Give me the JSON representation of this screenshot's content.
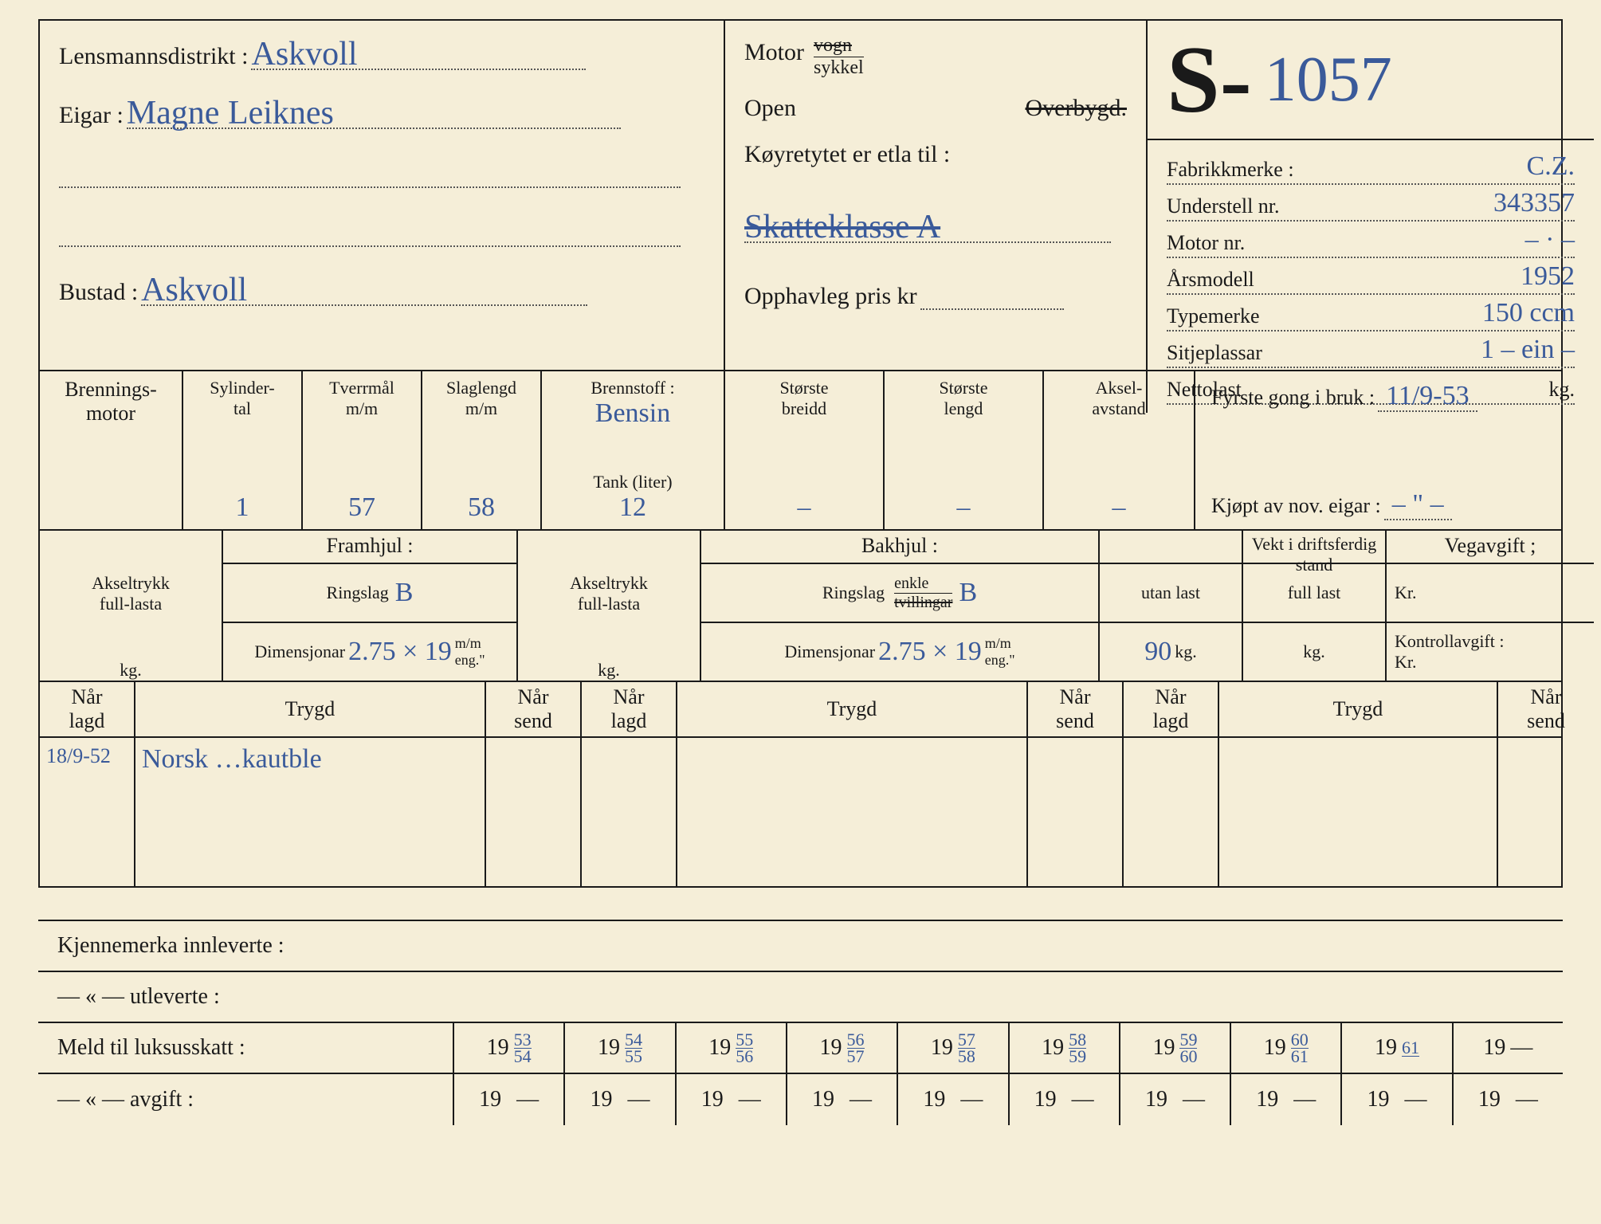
{
  "colors": {
    "paper": "#f5eed8",
    "ink": "#1a1a1a",
    "handwriting": "#3a5a9a",
    "dotted": "#555555"
  },
  "labels": {
    "lensmannsdistrikt": "Lensmannsdistrikt :",
    "eigar": "Eigar :",
    "bustad": "Bustad :",
    "motor": "Motor",
    "vogn": "vogn",
    "sykkel": "sykkel",
    "open": "Open",
    "overbygd": "Overbygd.",
    "koyretil": "Køyretytet er etla til :",
    "opphavleg": "Opphavleg pris kr",
    "fabrikkmerke": "Fabrikkmerke :",
    "understell": "Understell nr.",
    "motornr": "Motor nr.",
    "arsmodell": "Årsmodell",
    "typemerke": "Typemerke",
    "sitjeplassar": "Sitjeplassar",
    "nettolast": "Nettolast",
    "kg": "kg.",
    "brenningsmotor": "Brennings-\nmotor",
    "sylindertal": "Sylinder-\ntal",
    "tverrmal": "Tverrmål\nm/m",
    "slaglengd": "Slaglengd\nm/m",
    "brennstoff": "Brennstoff :",
    "tank": "Tank (liter)",
    "storstebreidd": "Største\nbreidd",
    "storstelengd": "Største\nlengd",
    "akselavstand": "Aksel-\navstand",
    "fyrstegong": "Fyrste gong i bruk :",
    "kjoptav": "Kjøpt av nov. eigar :",
    "framhjul": "Framhjul :",
    "bakhjul": "Bakhjul :",
    "vektstand": "Vekt i driftsferdig stand",
    "vegavgift": "Vegavgift ;",
    "kontrollavgift": "Kontrollavgift :",
    "kr": "Kr.",
    "akseltrykk": "Akseltrykk\nfull-lasta",
    "ringslag": "Ringslag",
    "enkle": "enkle",
    "tvillingar": "tvillingar",
    "dimensjonar": "Dimensjonar",
    "mm_eng": "m/m\neng.\"",
    "utanlast": "utan last",
    "fulllast": "full last",
    "narlagd": "Når\nlagd",
    "trygd": "Trygd",
    "narsend": "Når\nsend",
    "kjennemerka_inn": "Kjennemerka innleverte :",
    "utleverte": "— « —      utleverte :",
    "meldluksus": "Meld til luksusskatt :",
    "avgift": "— « —   avgift :",
    "reg_prefix": "S-",
    "year_prefix": "19",
    "dash": "—"
  },
  "values": {
    "lensmannsdistrikt": "Askvoll",
    "eigar": "Magne Leiknes",
    "bustad": "Askvoll",
    "reg_no": "1057",
    "skatteklasse": "Skatteklasse A",
    "fabrikkmerke": "C.Z.",
    "understell": "343357",
    "motornr": "– · –",
    "arsmodell": "1952",
    "typemerke": "150 ccm",
    "sitjeplassar": "1 – ein –",
    "sylindertal": "1",
    "tverrmal": "57",
    "slaglengd": "58",
    "brennstoff": "Bensin",
    "tank": "12",
    "storstebreidd": "–",
    "storstelengd": "–",
    "akselavstand": "–",
    "fyrstegong": "11/9-53",
    "kjoptav": "– \" –",
    "ringslag_fram": "B",
    "dim_fram": "2.75 × 19",
    "ringslag_bak": "B",
    "dim_bak": "2.75 × 19",
    "utanlast": "90",
    "trygd_dato": "18/9-52",
    "trygd_text": "Norsk …kautble",
    "luksus_years": [
      {
        "top": "53",
        "bot": "54"
      },
      {
        "top": "54",
        "bot": "55"
      },
      {
        "top": "55",
        "bot": "56"
      },
      {
        "top": "56",
        "bot": "57"
      },
      {
        "top": "57",
        "bot": "58"
      },
      {
        "top": "58",
        "bot": "59"
      },
      {
        "top": "59",
        "bot": "60"
      },
      {
        "top": "60",
        "bot": "61"
      },
      {
        "top": "61",
        "bot": ""
      },
      {
        "top": "",
        "bot": ""
      }
    ]
  }
}
